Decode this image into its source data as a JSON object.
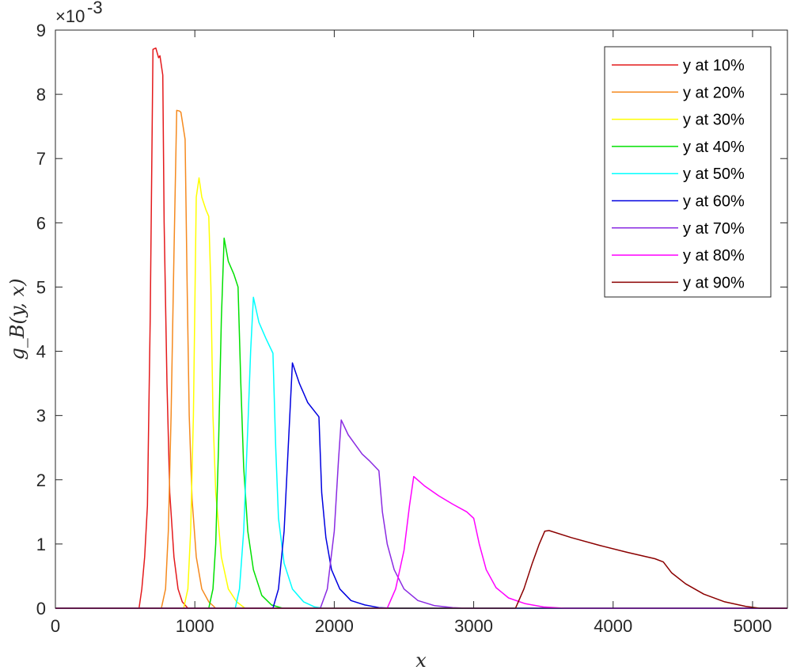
{
  "chart_data": {
    "type": "line",
    "xlabel": "x",
    "ylabel": "g_B(y, x)",
    "y_exponent_base": "×10",
    "y_exponent_power": "-3",
    "xlim": [
      0,
      5250
    ],
    "ylim": [
      0,
      9
    ],
    "x_ticks": [
      0,
      1000,
      2000,
      3000,
      4000,
      5000
    ],
    "y_ticks": [
      0,
      1,
      2,
      3,
      4,
      5,
      6,
      7,
      8,
      9
    ],
    "y_scale_factor": 0.001,
    "grid": false,
    "legend_position": "top-right",
    "series": [
      {
        "name": "y at 10%",
        "color": "#e41a1c",
        "x": [
          0,
          600,
          620,
          640,
          660,
          680,
          700,
          720,
          740,
          750,
          770,
          780,
          800,
          820,
          850,
          880,
          910,
          950,
          5250
        ],
        "y": [
          0,
          0,
          0.3,
          0.8,
          1.6,
          4.5,
          8.7,
          8.72,
          8.57,
          8.6,
          8.3,
          6.0,
          3.5,
          1.8,
          0.8,
          0.3,
          0.1,
          0,
          0
        ]
      },
      {
        "name": "y at 20%",
        "color": "#f58a1f",
        "x": [
          0,
          760,
          790,
          810,
          830,
          850,
          870,
          890,
          900,
          930,
          945,
          960,
          980,
          1010,
          1050,
          1100,
          1150,
          5250
        ],
        "y": [
          0,
          0,
          0.3,
          1.2,
          3.0,
          5.5,
          7.75,
          7.74,
          7.72,
          7.3,
          5.0,
          3.0,
          1.7,
          0.8,
          0.3,
          0.1,
          0,
          0
        ]
      },
      {
        "name": "y at 30%",
        "color": "#ffff00",
        "x": [
          0,
          920,
          950,
          970,
          990,
          1010,
          1030,
          1050,
          1080,
          1100,
          1115,
          1130,
          1150,
          1190,
          1240,
          1300,
          1360,
          5250
        ],
        "y": [
          0,
          0,
          0.3,
          1.2,
          3.0,
          6.4,
          6.7,
          6.4,
          6.2,
          6.1,
          5.0,
          3.0,
          1.8,
          0.8,
          0.3,
          0.1,
          0,
          0
        ]
      },
      {
        "name": "y at 40%",
        "color": "#00e000",
        "x": [
          0,
          1100,
          1130,
          1150,
          1170,
          1190,
          1210,
          1240,
          1280,
          1310,
          1330,
          1350,
          1380,
          1420,
          1480,
          1550,
          1630,
          5250
        ],
        "y": [
          0,
          0,
          0.3,
          1.0,
          2.5,
          4.5,
          5.76,
          5.4,
          5.2,
          5.0,
          3.5,
          2.2,
          1.2,
          0.6,
          0.2,
          0.05,
          0,
          0
        ]
      },
      {
        "name": "y at 50%",
        "color": "#00ffff",
        "x": [
          0,
          1290,
          1320,
          1350,
          1380,
          1400,
          1420,
          1460,
          1510,
          1560,
          1580,
          1600,
          1640,
          1700,
          1780,
          1860,
          1920,
          5250
        ],
        "y": [
          0,
          0,
          0.3,
          1.2,
          2.8,
          4.0,
          4.84,
          4.45,
          4.2,
          3.97,
          2.5,
          1.4,
          0.7,
          0.3,
          0.1,
          0.02,
          0,
          0
        ]
      },
      {
        "name": "y at 60%",
        "color": "#0000e0",
        "x": [
          0,
          1560,
          1600,
          1640,
          1670,
          1700,
          1750,
          1810,
          1890,
          1910,
          1940,
          1980,
          2040,
          2120,
          2220,
          2320,
          2420,
          5250
        ],
        "y": [
          0,
          0,
          0.3,
          1.2,
          2.5,
          3.82,
          3.5,
          3.2,
          2.98,
          1.8,
          1.1,
          0.6,
          0.3,
          0.12,
          0.05,
          0.01,
          0,
          0
        ]
      },
      {
        "name": "y at 70%",
        "color": "#8a2be2",
        "x": [
          0,
          1900,
          1950,
          2000,
          2030,
          2050,
          2100,
          2150,
          2200,
          2250,
          2320,
          2345,
          2380,
          2430,
          2500,
          2600,
          2720,
          2850,
          2950,
          5250
        ],
        "y": [
          0,
          0,
          0.3,
          1.2,
          2.3,
          2.93,
          2.7,
          2.55,
          2.4,
          2.3,
          2.14,
          1.5,
          1.0,
          0.6,
          0.3,
          0.12,
          0.04,
          0.01,
          0,
          0
        ]
      },
      {
        "name": "y at 80%",
        "color": "#ff00ff",
        "x": [
          0,
          2380,
          2440,
          2500,
          2540,
          2570,
          2650,
          2750,
          2850,
          2950,
          3000,
          3040,
          3090,
          3160,
          3250,
          3370,
          3500,
          3650,
          5250
        ],
        "y": [
          0,
          0,
          0.3,
          0.9,
          1.6,
          2.05,
          1.9,
          1.75,
          1.62,
          1.5,
          1.4,
          1.0,
          0.6,
          0.32,
          0.16,
          0.07,
          0.02,
          0,
          0
        ]
      },
      {
        "name": "y at 90%",
        "color": "#8b0000",
        "x": [
          0,
          3300,
          3360,
          3420,
          3470,
          3510,
          3540,
          3700,
          3900,
          4100,
          4300,
          4360,
          4420,
          4520,
          4650,
          4800,
          4950,
          5050,
          5250
        ],
        "y": [
          0,
          0,
          0.3,
          0.7,
          1.0,
          1.2,
          1.21,
          1.1,
          0.98,
          0.87,
          0.77,
          0.72,
          0.55,
          0.38,
          0.22,
          0.1,
          0.03,
          0,
          0
        ]
      }
    ]
  }
}
